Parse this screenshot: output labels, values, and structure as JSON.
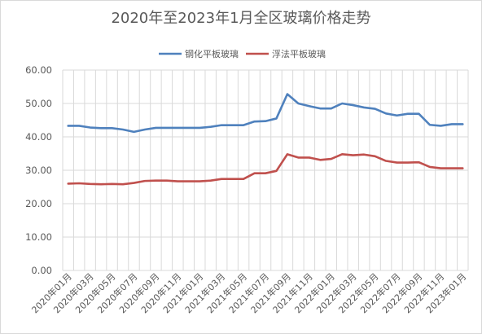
{
  "chart_data": {
    "type": "line",
    "title": "2020年至2023年1月全区玻璃价格走势",
    "xlabel": "",
    "ylabel": "",
    "ylim": [
      0,
      60
    ],
    "yticks": [
      "0.00",
      "10.00",
      "20.00",
      "30.00",
      "40.00",
      "50.00",
      "60.00"
    ],
    "grid": "vertical and horizontal",
    "legend_position": "top",
    "categories": [
      "2020年01月",
      "2020年02月",
      "2020年03月",
      "2020年04月",
      "2020年05月",
      "2020年06月",
      "2020年07月",
      "2020年08月",
      "2020年09月",
      "2020年10月",
      "2020年11月",
      "2020年12月",
      "2021年01月",
      "2021年02月",
      "2021年03月",
      "2021年04月",
      "2021年05月",
      "2021年06月",
      "2021年07月",
      "2021年08月",
      "2021年09月",
      "2021年10月",
      "2021年11月",
      "2021年12月",
      "2022年01月",
      "2022年02月",
      "2022年03月",
      "2022年04月",
      "2022年05月",
      "2022年06月",
      "2022年07月",
      "2022年08月",
      "2022年09月",
      "2022年10月",
      "2022年11月",
      "2022年12月",
      "2023年01月"
    ],
    "tick_labels": [
      "2020年01月",
      "2020年03月",
      "2020年05月",
      "2020年07月",
      "2020年09月",
      "2020年11月",
      "2021年01月",
      "2021年03月",
      "2021年05月",
      "2021年07月",
      "2021年09月",
      "2021年11月",
      "2022年01月",
      "2022年03月",
      "2022年05月",
      "2022年07月",
      "2022年09月",
      "2022年11月",
      "2023年01月"
    ],
    "series": [
      {
        "name": "钢化平板玻璃",
        "color": "#4F81BD",
        "values": [
          43.3,
          43.3,
          42.8,
          42.6,
          42.6,
          42.2,
          41.5,
          42.2,
          42.7,
          42.7,
          42.7,
          42.7,
          42.7,
          43.0,
          43.5,
          43.5,
          43.5,
          44.6,
          44.7,
          45.5,
          52.8,
          50.0,
          49.2,
          48.5,
          48.5,
          50.0,
          49.5,
          48.8,
          48.4,
          47.0,
          46.4,
          46.9,
          46.9,
          43.6,
          43.3,
          43.8,
          43.8
        ]
      },
      {
        "name": "浮法平板玻璃",
        "color": "#C0504D",
        "values": [
          26.0,
          26.1,
          25.9,
          25.8,
          25.9,
          25.8,
          26.2,
          26.8,
          26.9,
          26.9,
          26.7,
          26.7,
          26.7,
          26.9,
          27.4,
          27.4,
          27.4,
          29.1,
          29.1,
          29.8,
          34.8,
          33.8,
          33.8,
          33.1,
          33.4,
          34.8,
          34.5,
          34.7,
          34.2,
          32.8,
          32.3,
          32.3,
          32.4,
          31.0,
          30.6,
          30.6,
          30.6
        ]
      }
    ]
  }
}
